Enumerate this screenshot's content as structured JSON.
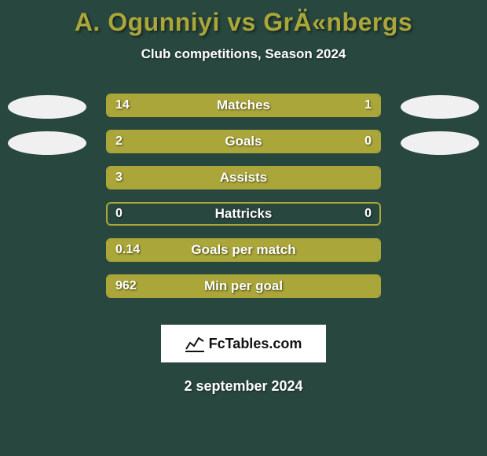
{
  "background_color": "#28473f",
  "title": "A. Ogunniyi vs GrÄ«nbergs",
  "title_color": "#aaa639",
  "title_fontsize": 32,
  "subtitle": "Club competitions, Season 2024",
  "subtitle_fontsize": 17,
  "text_color": "#ffffff",
  "bar_color": "#aaa639",
  "bar_border_color": "#aaa639",
  "track_bg_color": "transparent",
  "avatar_color": "#f0f0f0",
  "stats": [
    {
      "label": "Matches",
      "left_val": "14",
      "right_val": "1",
      "left_pct": 76,
      "right_pct": 24,
      "show_avatars": true
    },
    {
      "label": "Goals",
      "left_val": "2",
      "right_val": "0",
      "left_pct": 78,
      "right_pct": 22,
      "show_avatars": true
    },
    {
      "label": "Assists",
      "left_val": "3",
      "right_val": "",
      "left_pct": 100,
      "right_pct": 0,
      "show_avatars": false
    },
    {
      "label": "Hattricks",
      "left_val": "0",
      "right_val": "0",
      "left_pct": 0,
      "right_pct": 0,
      "show_avatars": false
    },
    {
      "label": "Goals per match",
      "left_val": "0.14",
      "right_val": "",
      "left_pct": 100,
      "right_pct": 0,
      "show_avatars": false
    },
    {
      "label": "Min per goal",
      "left_val": "962",
      "right_val": "",
      "left_pct": 100,
      "right_pct": 0,
      "show_avatars": false
    }
  ],
  "footer_brand": "FcTables.com",
  "footer_bg": "#ffffff",
  "date": "2 september 2024"
}
